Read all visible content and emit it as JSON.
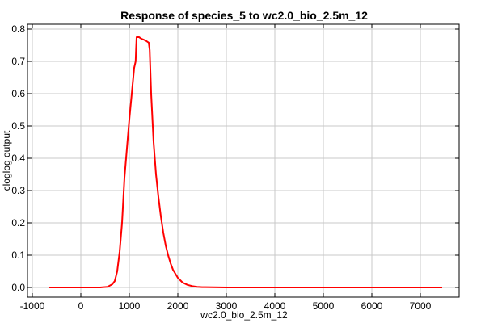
{
  "chart_data": {
    "type": "line",
    "title": "Response of species_5 to wc2.0_bio_2.5m_12",
    "xlabel": "wc2.0_bio_2.5m_12",
    "ylabel": "cloglog output",
    "xlim": [
      -1100,
      7800
    ],
    "ylim": [
      -0.03,
      0.815
    ],
    "xticks": [
      -1000,
      0,
      1000,
      2000,
      3000,
      4000,
      5000,
      6000,
      7000
    ],
    "xtick_labels": [
      "-1000",
      "0",
      "1000",
      "2000",
      "3000",
      "4000",
      "5000",
      "6000",
      "7000"
    ],
    "yticks": [
      0.0,
      0.1,
      0.2,
      0.3,
      0.4,
      0.5,
      0.6,
      0.7,
      0.8
    ],
    "ytick_labels": [
      "0.0",
      "0.1",
      "0.2",
      "0.3",
      "0.4",
      "0.5",
      "0.6",
      "0.7",
      "0.8"
    ],
    "grid": true,
    "color": "#ff0000",
    "series": [
      {
        "x": [
          -650,
          0,
          400,
          550,
          650,
          700,
          750,
          800,
          850,
          900,
          950,
          1000,
          1050,
          1100,
          1130,
          1140,
          1150,
          1200,
          1250,
          1300,
          1350,
          1400,
          1420,
          1450,
          1500,
          1550,
          1600,
          1650,
          1700,
          1750,
          1800,
          1850,
          1900,
          2000,
          2100,
          2200,
          2300,
          2400,
          2500,
          3000,
          4000,
          5000,
          6000,
          7000,
          7450
        ],
        "y": [
          0.0,
          0.0,
          0.0,
          0.002,
          0.01,
          0.02,
          0.05,
          0.11,
          0.2,
          0.34,
          0.43,
          0.52,
          0.6,
          0.68,
          0.7,
          0.74,
          0.775,
          0.775,
          0.77,
          0.767,
          0.763,
          0.758,
          0.735,
          0.6,
          0.45,
          0.35,
          0.28,
          0.22,
          0.17,
          0.13,
          0.1,
          0.075,
          0.055,
          0.03,
          0.015,
          0.008,
          0.004,
          0.002,
          0.001,
          0.0,
          0.0,
          0.0,
          0.0,
          0.0,
          0.0
        ]
      }
    ]
  }
}
